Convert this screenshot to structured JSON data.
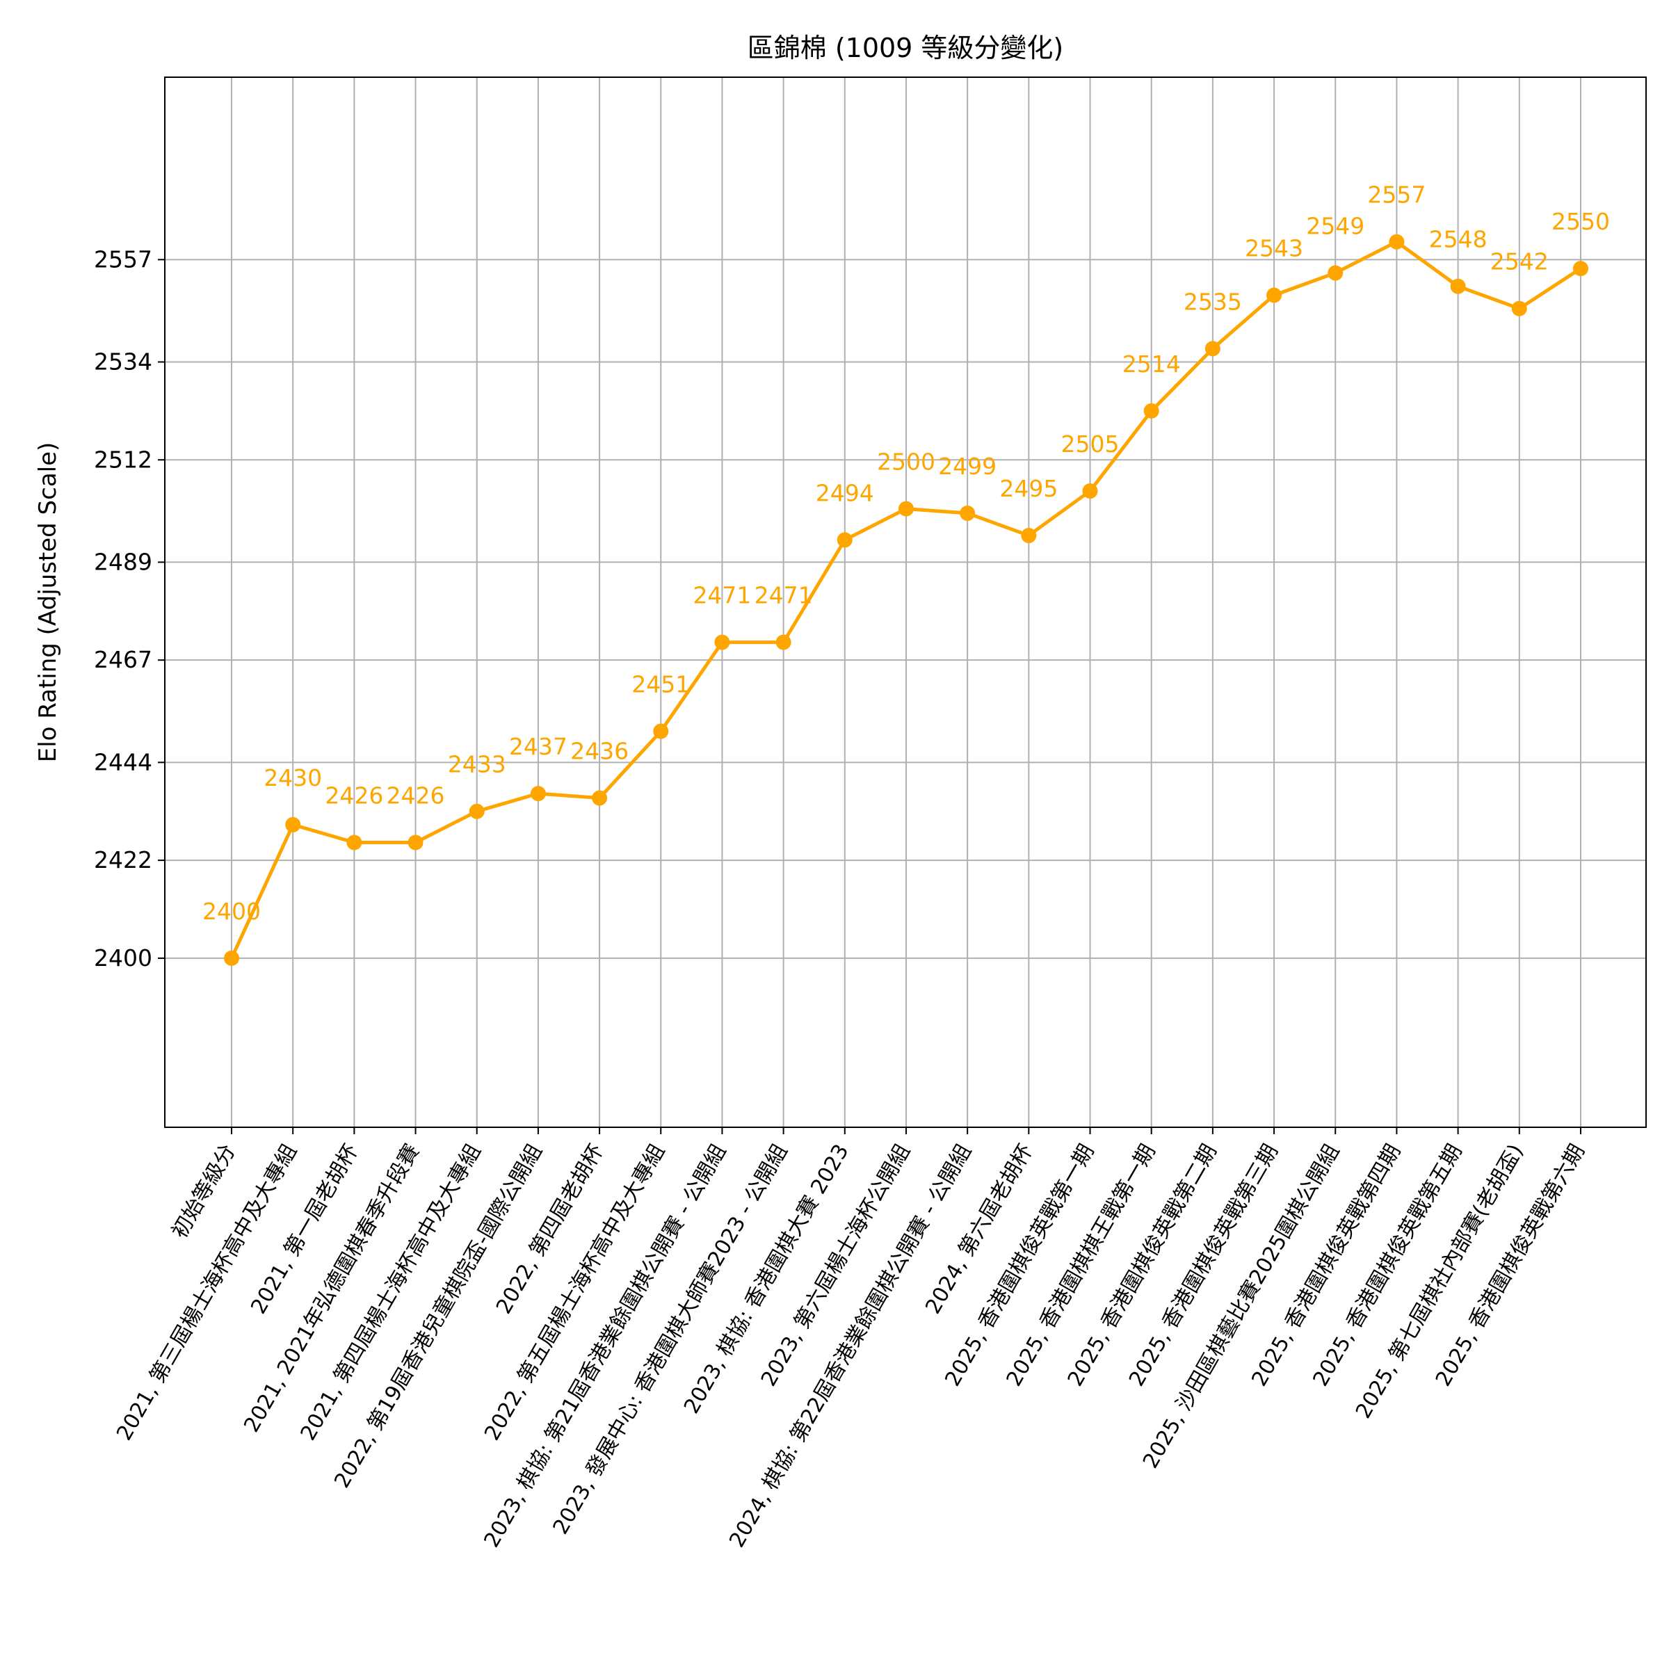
{
  "chart_data": {
    "type": "line",
    "title": "區錦棉 (1009 等級分變化)",
    "xlabel": "",
    "ylabel": "Elo Rating (Adjusted Scale)",
    "grid": true,
    "legend": false,
    "ylim": [
      2362,
      2598
    ],
    "yticks": [
      2400,
      2422,
      2444,
      2467,
      2489,
      2512,
      2534,
      2557
    ],
    "categories": [
      "初始等級分",
      "2021, 第三屆楊士海杯高中及大專組",
      "2021, 第一屆老胡杯",
      "2021, 2021年弘德圍棋春季升段賽",
      "2021, 第四屆楊士海杯高中及大專組",
      "2022, 第19屆香港兒童棋院盃-國際公開組",
      "2022, 第四屆老胡杯",
      "2022, 第五屆楊士海杯高中及大專組",
      "2023, 棋協: 第21屆香港業餘圍棋公開賽 - 公開組",
      "2023, 發展中心: 香港圍棋大師賽2023 - 公開組",
      "2023, 棋協: 香港圍棋大賽 2023",
      "2023, 第六屆楊士海杯公開組",
      "2024, 棋協: 第22屆香港業餘圍棋公開賽 - 公開組",
      "2024, 第六屆老胡杯",
      "2025, 香港圍棋俊英戰第一期",
      "2025, 香港圍棋棋王戰第一期",
      "2025, 香港圍棋俊英戰第二期",
      "2025, 香港圍棋俊英戰第三期",
      "2025, 沙田區棋藝比賽2025圍棋公開組",
      "2025, 香港圍棋俊英戰第四期",
      "2025, 香港圍棋俊英戰第五期",
      "2025, 第七屆棋社內部賽(老胡盃)",
      "2025, 香港圍棋俊英戰第六期"
    ],
    "series": [
      {
        "color": "#FFA500",
        "values": [
          2400,
          2430,
          2426,
          2426,
          2433,
          2437,
          2436,
          2451,
          2471,
          2471,
          2494,
          2500,
          2499,
          2495,
          2505,
          2514,
          2535,
          2543,
          2549,
          2557,
          2548,
          2542,
          2550
        ],
        "display_y": [
          2400,
          2430,
          2426,
          2426,
          2433,
          2437,
          2436,
          2451,
          2471,
          2471,
          2494,
          2501,
          2500,
          2495,
          2505,
          2523,
          2537,
          2549,
          2554,
          2561,
          2551,
          2546,
          2555
        ]
      }
    ],
    "data_labels": [
      "2400",
      "2430",
      "2426",
      "2426",
      "2433",
      "2437",
      "2436",
      "2451",
      "2471",
      "2471",
      "2494",
      "2500",
      "2499",
      "2495",
      "2505",
      "2514",
      "2535",
      "2543",
      "2549",
      "2557",
      "2548",
      "2542",
      "2550"
    ]
  }
}
